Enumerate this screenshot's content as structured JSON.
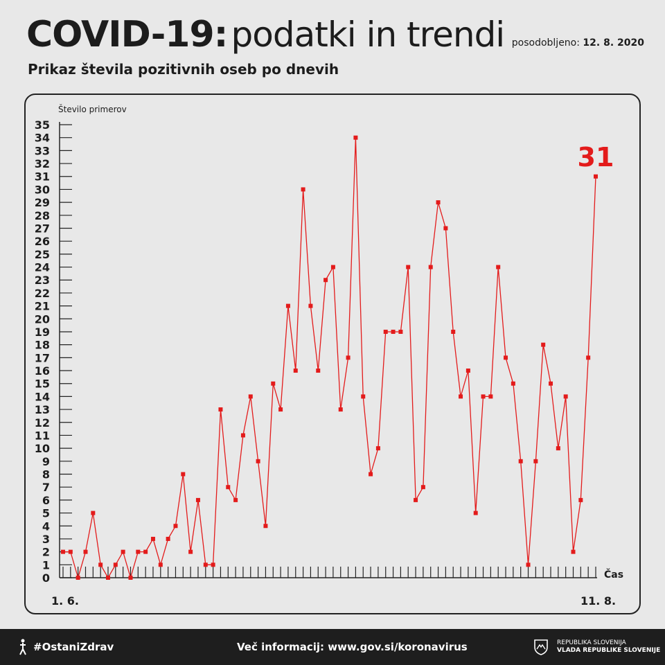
{
  "header": {
    "title_bold": "COVID-19:",
    "title_rest": "podatki in trendi",
    "updated_label": "posodobljeno:",
    "updated_date": "12. 8. 2020",
    "subtitle": "Prikaz števila pozitivnih oseb po dnevih"
  },
  "footer": {
    "hashtag": "#OstaniZdrav",
    "info": "Več informacij: www.gov.si/koronavirus",
    "gov_line1": "REPUBLIKA SLOVENIJA",
    "gov_line2": "VLADA REPUBLIKE SLOVENIJE"
  },
  "chart_data": {
    "type": "line",
    "title": "Prikaz števila pozitivnih oseb po dnevih",
    "ylabel": "Število primerov",
    "xlabel": "Čas",
    "x_start_label": "1. 6.",
    "x_end_label": "11. 8.",
    "ylim": [
      0,
      35
    ],
    "yticks": [
      0,
      1,
      2,
      3,
      4,
      5,
      6,
      7,
      8,
      9,
      10,
      11,
      12,
      13,
      14,
      15,
      16,
      17,
      18,
      19,
      20,
      21,
      22,
      23,
      24,
      25,
      26,
      27,
      28,
      29,
      30,
      31,
      32,
      33,
      34,
      35
    ],
    "last_value_label": "31",
    "line_color": "#e31b1b",
    "grid": false,
    "series": [
      {
        "values": [
          2,
          2,
          0,
          2,
          5,
          1,
          0,
          1,
          2,
          0,
          2,
          2,
          3,
          1,
          3,
          4,
          8,
          2,
          6,
          1,
          1,
          13,
          7,
          6,
          11,
          14,
          9,
          4,
          15,
          13,
          21,
          16,
          30,
          21,
          16,
          23,
          24,
          13,
          17,
          34,
          14,
          8,
          10,
          19,
          19,
          19,
          24,
          6,
          7,
          24,
          29,
          27,
          19,
          14,
          16,
          5,
          14,
          14,
          24,
          17,
          15,
          9,
          1,
          9,
          18,
          15,
          10,
          14,
          2,
          6,
          17,
          31
        ]
      }
    ]
  }
}
